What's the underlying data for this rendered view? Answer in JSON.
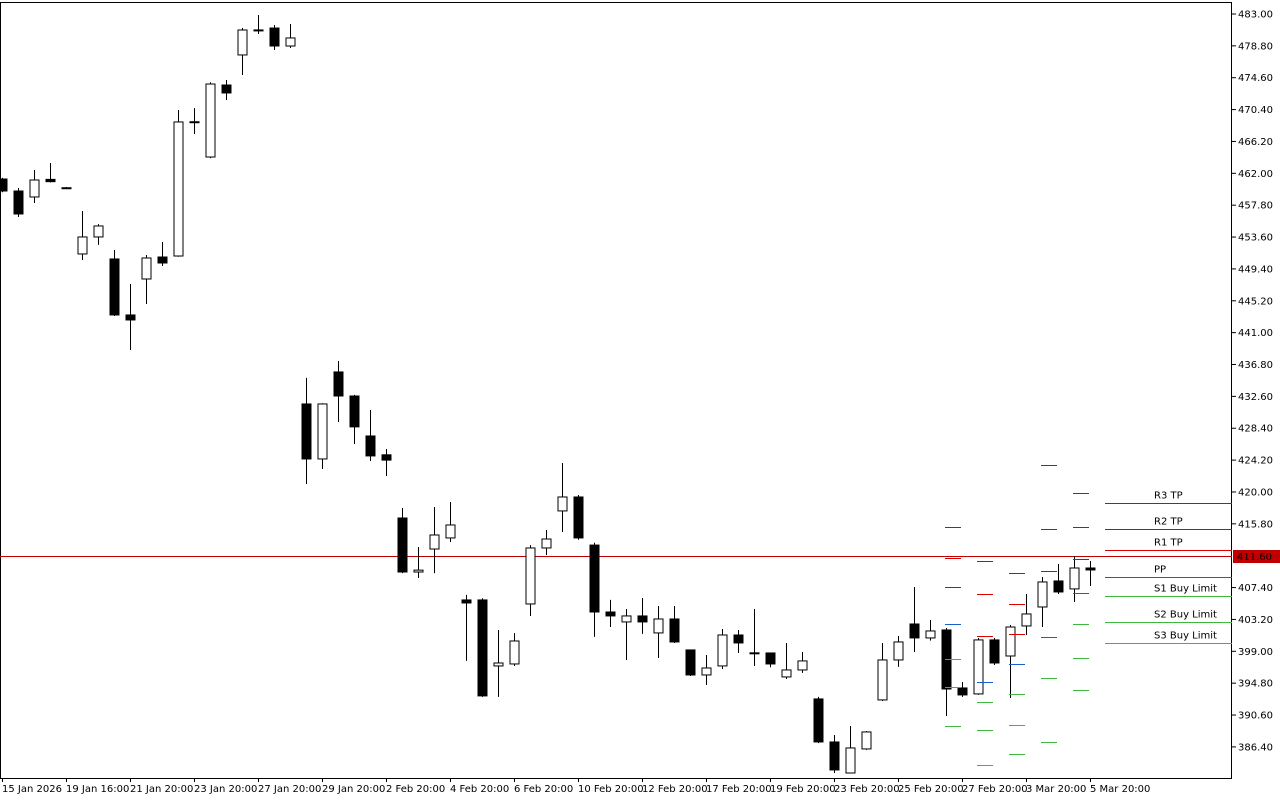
{
  "chart_data": {
    "type": "candlestick",
    "categories": [
      "15 Jan 2026",
      null,
      null,
      null,
      "19 Jan 16:00",
      null,
      null,
      null,
      "21 Jan 20:00",
      null,
      null,
      null,
      "23 Jan 20:00",
      null,
      null,
      null,
      "27 Jan 20:00",
      null,
      null,
      null,
      "29 Jan 20:00",
      null,
      null,
      null,
      "2 Feb 20:00",
      null,
      null,
      null,
      "4 Feb 20:00",
      null,
      null,
      null,
      "6 Feb 20:00",
      null,
      null,
      null,
      "10 Feb 20:00",
      null,
      null,
      null,
      "12 Feb 20:00",
      null,
      null,
      null,
      "17 Feb 20:00",
      null,
      null,
      null,
      "19 Feb 20:00",
      null,
      null,
      null,
      "23 Feb 20:00",
      null,
      null,
      null,
      "25 Feb 20:00",
      null,
      null,
      null,
      "27 Feb 20:00",
      null,
      null,
      null,
      "3 Mar 20:00",
      null,
      null,
      null,
      "5 Mar 20:00"
    ],
    "series": [
      {
        "up_color": "#ffffff",
        "down_color": "#000000",
        "open": [
          461.25,
          459.67,
          458.88,
          461.2,
          460.1,
          451.37,
          453.61,
          450.71,
          443.33,
          448.07,
          450.97,
          451.1,
          468.7,
          464.15,
          473.64,
          477.6,
          480.9,
          481.15,
          478.78,
          431.6,
          424.35,
          435.82,
          432.65,
          427.38,
          424.9,
          416.57,
          409.45,
          412.48,
          413.94,
          405.77,
          405.77,
          397.07,
          397.33,
          405.24,
          412.62,
          417.5,
          419.34,
          413.0,
          404.18,
          402.87,
          403.66,
          401.42,
          403.26,
          399.18,
          395.88,
          397.07,
          401.15,
          398.8,
          398.78,
          395.62,
          396.54,
          392.72,
          387.05,
          382.96,
          386.13,
          392.59,
          397.86,
          402.6,
          400.76,
          401.81,
          394.17,
          393.38,
          400.5,
          398.38,
          402.34,
          404.84,
          408.27,
          407.22,
          409.98
        ],
        "high": [
          461.4,
          460.07,
          462.44,
          463.36,
          460.2,
          457.04,
          455.3,
          451.9,
          447.41,
          451.24,
          452.95,
          470.35,
          470.6,
          474.0,
          474.3,
          481.15,
          482.87,
          481.55,
          481.68,
          435.03,
          431.7,
          437.27,
          432.8,
          430.8,
          425.67,
          417.89,
          412.75,
          418.02,
          418.68,
          406.43,
          406.0,
          401.81,
          401.4,
          413.0,
          414.99,
          423.82,
          419.6,
          413.3,
          405.77,
          404.58,
          406.03,
          404.97,
          404.97,
          399.2,
          398.52,
          401.94,
          401.8,
          404.58,
          398.8,
          400.1,
          398.91,
          393.0,
          387.97,
          389.16,
          388.5,
          400.1,
          401.02,
          407.48,
          403.13,
          402.07,
          394.96,
          400.76,
          400.76,
          402.47,
          406.56,
          408.8,
          410.51,
          411.56,
          410.9
        ],
        "low": [
          459.5,
          456.25,
          458.09,
          460.8,
          460.0,
          450.58,
          452.56,
          443.2,
          438.72,
          444.78,
          449.79,
          451.0,
          467.18,
          464.0,
          471.67,
          474.96,
          480.36,
          478.25,
          478.52,
          421.05,
          423.03,
          429.23,
          426.33,
          424.09,
          422.1,
          409.3,
          408.66,
          409.3,
          413.41,
          397.73,
          393.0,
          393.0,
          397.07,
          403.66,
          411.7,
          414.73,
          413.7,
          400.9,
          402.2,
          397.86,
          401.3,
          398.12,
          400.1,
          395.75,
          394.56,
          396.67,
          398.78,
          397.07,
          396.9,
          395.35,
          396.15,
          386.9,
          382.96,
          382.9,
          386.0,
          392.45,
          396.94,
          398.91,
          400.4,
          390.48,
          393.0,
          393.25,
          397.2,
          392.85,
          401.15,
          402.2,
          406.56,
          405.5,
          407.61
        ],
        "close": [
          459.67,
          456.64,
          461.12,
          460.9,
          460.1,
          453.61,
          455.06,
          443.33,
          442.67,
          450.84,
          450.18,
          468.77,
          468.8,
          473.77,
          472.59,
          480.89,
          480.8,
          478.78,
          479.84,
          424.35,
          431.6,
          432.65,
          428.58,
          424.75,
          424.2,
          409.45,
          409.7,
          414.33,
          415.65,
          405.37,
          393.12,
          397.46,
          400.36,
          412.62,
          413.8,
          419.34,
          413.94,
          404.18,
          403.66,
          403.66,
          402.87,
          403.26,
          400.23,
          395.88,
          396.8,
          401.15,
          400.1,
          398.7,
          397.33,
          396.54,
          397.73,
          387.05,
          383.36,
          386.26,
          388.37,
          397.86,
          400.23,
          400.76,
          401.68,
          394.03,
          393.25,
          400.5,
          397.46,
          402.2,
          403.92,
          408.14,
          406.82,
          409.98,
          409.72
        ]
      }
    ],
    "ylim": [
      382.3,
      484.58
    ],
    "yticks": [
      {
        "value": 483.0,
        "label": "483.00"
      },
      {
        "value": 478.8,
        "label": "478.80"
      },
      {
        "value": 474.6,
        "label": "474.60"
      },
      {
        "value": 470.4,
        "label": "470.40"
      },
      {
        "value": 466.2,
        "label": "466.20"
      },
      {
        "value": 462.0,
        "label": "462.00"
      },
      {
        "value": 457.8,
        "label": "457.80"
      },
      {
        "value": 453.6,
        "label": "453.60"
      },
      {
        "value": 449.4,
        "label": "449.40"
      },
      {
        "value": 445.2,
        "label": "445.20"
      },
      {
        "value": 441.0,
        "label": "441.00"
      },
      {
        "value": 436.8,
        "label": "436.80"
      },
      {
        "value": 432.6,
        "label": "432.60"
      },
      {
        "value": 428.4,
        "label": "428.40"
      },
      {
        "value": 424.2,
        "label": "424.20"
      },
      {
        "value": 420.0,
        "label": "420.00"
      },
      {
        "value": 415.8,
        "label": "415.80"
      },
      {
        "value": 407.4,
        "label": "407.40"
      },
      {
        "value": 403.2,
        "label": "403.20"
      },
      {
        "value": 399.0,
        "label": "399.00"
      },
      {
        "value": 394.8,
        "label": "394.80"
      },
      {
        "value": 390.6,
        "label": "390.60"
      },
      {
        "value": 386.4,
        "label": "386.40"
      }
    ],
    "current_price": {
      "value": 411.6,
      "label": "411.60",
      "color": "#c00000"
    },
    "levels": [
      {
        "name": "R3 TP",
        "value": 418.55,
        "color": "#e00000"
      },
      {
        "name": "R2 TP",
        "value": 415.12,
        "color": "#e00000"
      },
      {
        "name": "R1 TP",
        "value": 412.35,
        "color": "#e00000"
      },
      {
        "name": "PP",
        "value": 408.8,
        "color": "#1a5fd0"
      },
      {
        "name": "S1 Buy Limit",
        "value": 406.3,
        "color": "#3cb83c"
      },
      {
        "name": "S2 Buy Limit",
        "value": 402.87,
        "color": "#3cb83c"
      },
      {
        "name": "S3 Buy Limit",
        "value": 400.1,
        "color": "#3cb83c"
      }
    ],
    "pivot_colors": {
      "resistance": "#e00000",
      "pivot": "#1a5fd0",
      "support": "#3cb83c"
    },
    "pivot_history": [
      {
        "resistance": [
          415.4,
          411.3,
          407.5
        ],
        "pivot": 402.6,
        "support": [
          398.0,
          394.3,
          389.1
        ]
      },
      {
        "resistance": [
          410.9,
          406.6,
          401.0
        ],
        "pivot": 395.0,
        "support": [
          392.3,
          388.6,
          384.0
        ]
      },
      {
        "resistance": [
          409.3,
          405.2,
          401.3
        ],
        "pivot": 397.3,
        "support": [
          393.4,
          389.3,
          385.5
        ]
      },
      {
        "resistance": [
          423.6,
          415.1,
          409.6
        ],
        "pivot": 400.9,
        "support": [
          395.5,
          387.0
        ]
      },
      {
        "resistance": [
          419.9,
          415.4,
          411.2
        ],
        "pivot": 406.7,
        "support": [
          402.6,
          398.1,
          393.9
        ]
      }
    ]
  }
}
